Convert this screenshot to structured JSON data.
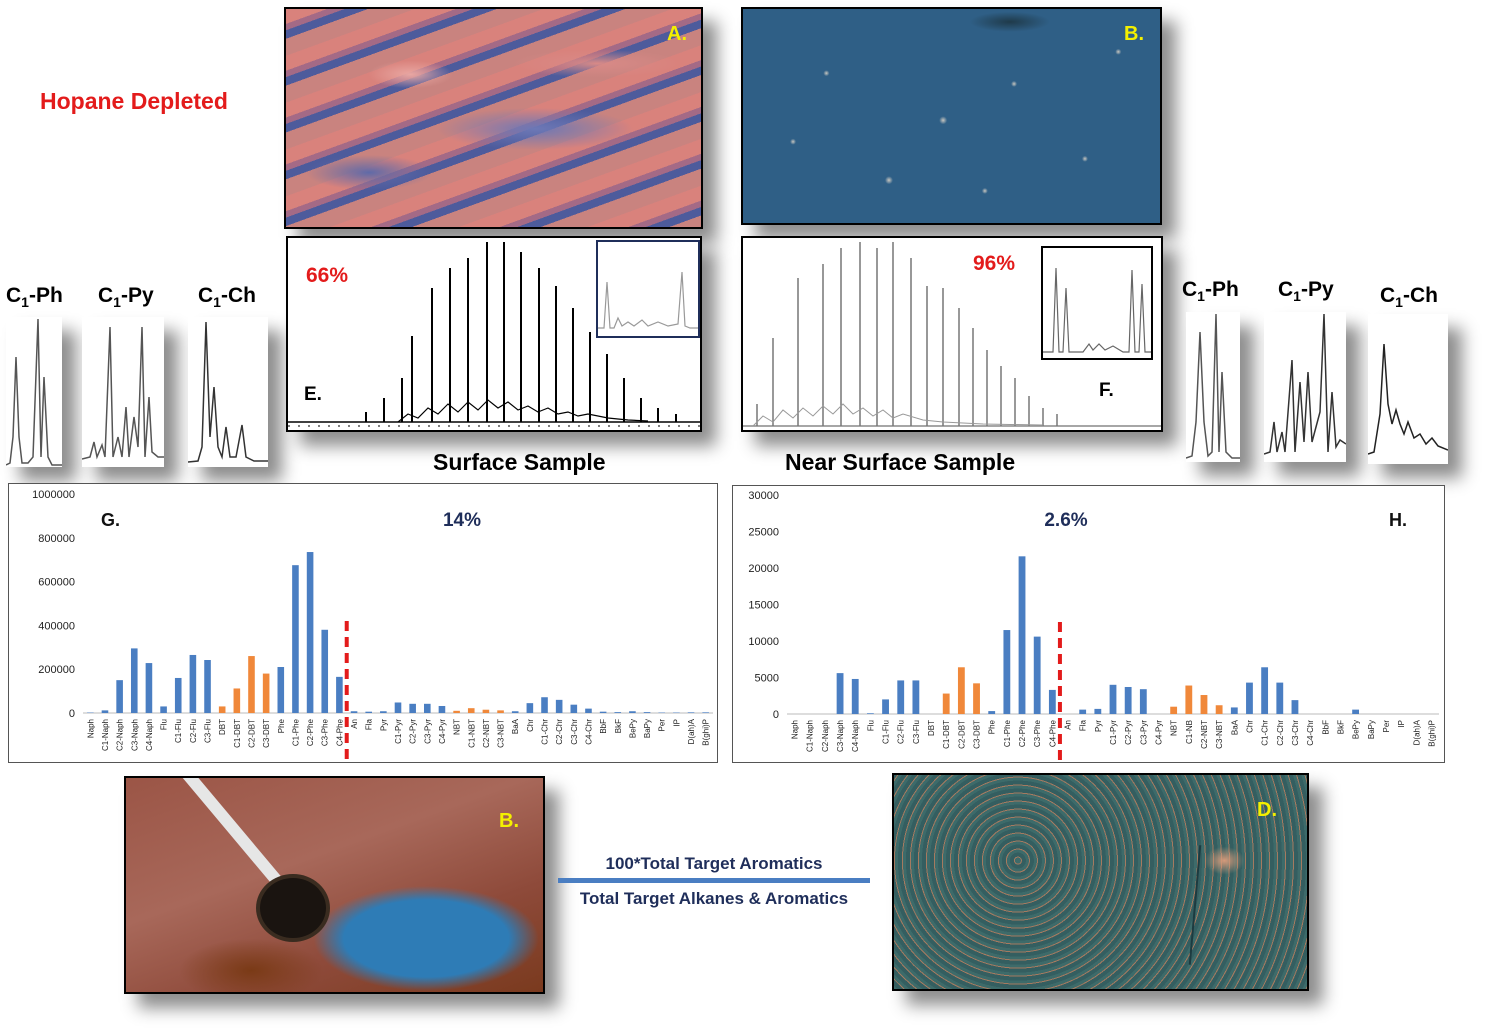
{
  "page": {
    "hopane_label": "Hopane Depleted",
    "surface_title": "Surface Sample",
    "near_surface_title": "Near Surface Sample",
    "ratio_numerator": "100*Total Target Aromatics",
    "ratio_denominator": "Total Target Alkanes & Aromatics"
  },
  "photos": {
    "a": {
      "label": "A."
    },
    "b_top": {
      "label": "B."
    },
    "b_bottom": {
      "label": "B."
    },
    "d": {
      "label": "D."
    }
  },
  "chromatograms": {
    "e": {
      "label": "E.",
      "percent": "66%"
    },
    "f": {
      "label": "F.",
      "percent": "96%"
    }
  },
  "compound_panels": {
    "left": [
      {
        "name": "C",
        "sub": "1",
        "suffix": "-Ph"
      },
      {
        "name": "C",
        "sub": "1",
        "suffix": "-Py"
      },
      {
        "name": "C",
        "sub": "1",
        "suffix": "-Ch"
      }
    ],
    "right": [
      {
        "name": "C",
        "sub": "1",
        "suffix": "-Ph"
      },
      {
        "name": "C",
        "sub": "1",
        "suffix": "-Py"
      },
      {
        "name": "C",
        "sub": "1",
        "suffix": "-Ch"
      }
    ]
  },
  "colors": {
    "bar_blue": "#4a7ec2",
    "bar_orange": "#f0883a",
    "divider_red": "#e31b1b",
    "label_yellow": "#f4f000",
    "text_navy": "#1f2e5a"
  },
  "chart_data": [
    {
      "id": "G",
      "type": "bar",
      "panel_label": "G.",
      "percent_label": "14%",
      "ylim": [
        0,
        1000000
      ],
      "yticks": [
        "0",
        "200000",
        "400000",
        "600000",
        "800000",
        "1000000"
      ],
      "ytick_values": [
        0,
        200000,
        400000,
        600000,
        800000,
        1000000
      ],
      "categories": [
        "Naph",
        "C1-Naph",
        "C2-Naph",
        "C3-Naph",
        "C4-Naph",
        "Flu",
        "C1-Flu",
        "C2-Flu",
        "C3-Flu",
        "DBT",
        "C1-DBT",
        "C2-DBT",
        "C3-DBT",
        "Phe",
        "C1-Phe",
        "C2-Phe",
        "C3-Phe",
        "C4-Phe",
        "An",
        "Fla",
        "Pyr",
        "C1-Pyr",
        "C2-Pyr",
        "C3-Pyr",
        "C4-Pyr",
        "NBT",
        "C1-NBT",
        "C2-NBT",
        "C3-NBT",
        "BaA",
        "Chr",
        "C1-Chr",
        "C2-Chr",
        "C3-Chr",
        "C4-Chr",
        "BbF",
        "BkF",
        "BePy",
        "BaPy",
        "Per",
        "IP",
        "D(ah)A",
        "B(ghi)P"
      ],
      "values": [
        2000,
        12000,
        150000,
        295000,
        228000,
        30000,
        160000,
        265000,
        242000,
        30000,
        112000,
        260000,
        180000,
        210000,
        675000,
        735000,
        380000,
        165000,
        8000,
        6000,
        8000,
        48000,
        42000,
        42000,
        32000,
        10000,
        22000,
        15000,
        12000,
        8000,
        45000,
        72000,
        60000,
        38000,
        20000,
        6000,
        4000,
        8000,
        4000,
        2000,
        2000,
        3000,
        3000
      ],
      "colors": [
        "b",
        "b",
        "b",
        "b",
        "b",
        "b",
        "b",
        "b",
        "b",
        "o",
        "o",
        "o",
        "o",
        "b",
        "b",
        "b",
        "b",
        "b",
        "b",
        "b",
        "b",
        "b",
        "b",
        "b",
        "b",
        "o",
        "o",
        "o",
        "o",
        "b",
        "b",
        "b",
        "b",
        "b",
        "b",
        "b",
        "b",
        "b",
        "b",
        "b",
        "b",
        "b",
        "b"
      ],
      "divider_after": "C4-Phe"
    },
    {
      "id": "H",
      "type": "bar",
      "panel_label": "H.",
      "percent_label": "2.6%",
      "ylim": [
        0,
        30000
      ],
      "yticks": [
        "0",
        "5000",
        "10000",
        "15000",
        "20000",
        "25000",
        "30000"
      ],
      "ytick_values": [
        0,
        5000,
        10000,
        15000,
        20000,
        25000,
        30000
      ],
      "categories": [
        "Naph",
        "C1-Naph",
        "C2-Naph",
        "C3-Naph",
        "C4-Naph",
        "Flu",
        "C1-Flu",
        "C2-Flu",
        "C3-Flu",
        "DBT",
        "C1-DBT",
        "C2-DBT",
        "C3-DBT",
        "Phe",
        "C1-Phe",
        "C2-Phe",
        "C3-Phe",
        "C4-Phe",
        "An",
        "Fla",
        "Pyr",
        "C1-Pyr",
        "C2-Pyr",
        "C3-Pyr",
        "C4-Pyr",
        "NBT",
        "C1-NB",
        "C2-NBT",
        "C3-NBT",
        "BaA",
        "Chr",
        "C1-Chr",
        "C2-Chr",
        "C3-Chr",
        "C4-Chr",
        "BbF",
        "BkF",
        "BePy",
        "BaPy",
        "Per",
        "IP",
        "D(ah)A",
        "B(ghi)P"
      ],
      "values": [
        0,
        0,
        0,
        5600,
        4800,
        100,
        2000,
        4600,
        4600,
        0,
        2800,
        6400,
        4200,
        400,
        11500,
        21600,
        10600,
        3300,
        0,
        600,
        700,
        4000,
        3700,
        3400,
        0,
        1000,
        3900,
        2600,
        1200,
        900,
        4300,
        6400,
        4300,
        1900,
        0,
        0,
        0,
        600,
        0,
        0,
        0,
        0,
        0
      ],
      "colors": [
        "b",
        "b",
        "b",
        "b",
        "b",
        "b",
        "b",
        "b",
        "b",
        "o",
        "o",
        "o",
        "o",
        "b",
        "b",
        "b",
        "b",
        "b",
        "b",
        "b",
        "b",
        "b",
        "b",
        "b",
        "b",
        "o",
        "o",
        "o",
        "o",
        "b",
        "b",
        "b",
        "b",
        "b",
        "b",
        "b",
        "b",
        "b",
        "b",
        "b",
        "b",
        "b",
        "b"
      ],
      "divider_after": "C4-Phe"
    }
  ]
}
